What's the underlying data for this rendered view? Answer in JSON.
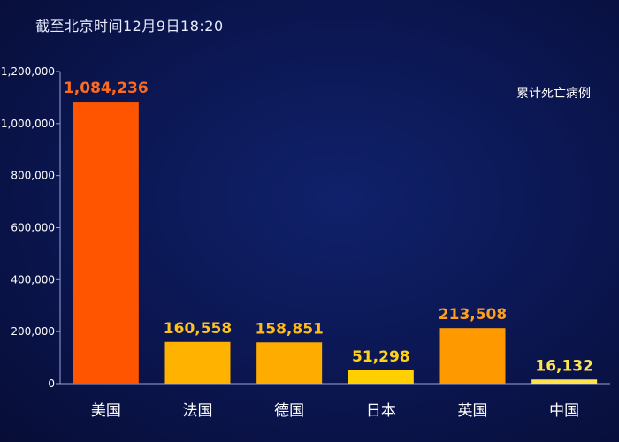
{
  "header": {
    "subtitle": "截至北京时间12月9日18:20"
  },
  "chart_data": {
    "type": "bar",
    "title": "",
    "xlabel": "",
    "ylabel": "",
    "legend": {
      "label": "累计死亡病例",
      "placement": "top-right"
    },
    "categories": [
      "美国",
      "法国",
      "德国",
      "日本",
      "英国",
      "中国"
    ],
    "values": [
      1084236,
      160558,
      158851,
      51298,
      213508,
      16132
    ],
    "value_labels": [
      "1,084,236",
      "160,558",
      "158,851",
      "51,298",
      "213,508",
      "16,132"
    ],
    "ylim": [
      0,
      1200000
    ],
    "yticks": [
      0,
      200000,
      400000,
      600000,
      800000,
      1000000,
      1200000
    ],
    "ytick_labels": [
      "0",
      "200,000",
      "400,000",
      "600,000",
      "800,000",
      "1,000,000",
      "1,200,000"
    ],
    "grid": false,
    "colors": {
      "bars": [
        "#ff5500",
        "#ffb300",
        "#ffac00",
        "#ffcf00",
        "#ff9900",
        "#ffe34d"
      ],
      "labels": [
        "#ff6a1f",
        "#ffc21a",
        "#ffbb1a",
        "#ffd21a",
        "#ff9f1a",
        "#ffe44d"
      ],
      "axis": "#9aa4d6"
    }
  }
}
